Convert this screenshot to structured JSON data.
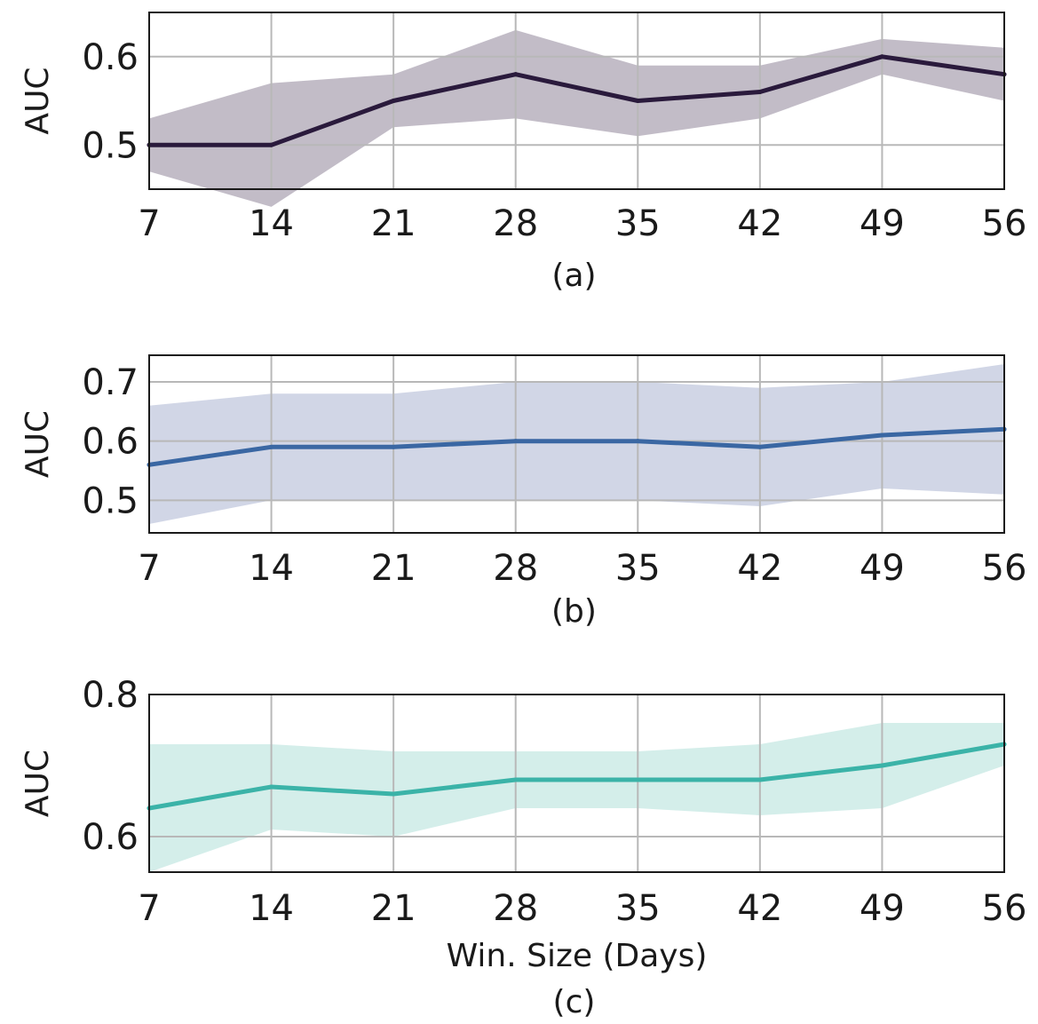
{
  "chart_data": [
    {
      "type": "line",
      "caption": "(a)",
      "xlabel": "",
      "ylabel": "AUC",
      "x": [
        7,
        14,
        21,
        28,
        35,
        42,
        49,
        56
      ],
      "xlim": [
        7,
        56
      ],
      "ylim": [
        0.45,
        0.65
      ],
      "yticks": [
        "0.5",
        "0.6"
      ],
      "grid": true,
      "color": "#2a1a3c",
      "band_color": "#b7b0bd",
      "series": [
        {
          "values": [
            0.5,
            0.5,
            0.55,
            0.58,
            0.55,
            0.56,
            0.6,
            0.58
          ],
          "upper": [
            0.53,
            0.57,
            0.58,
            0.63,
            0.59,
            0.59,
            0.62,
            0.61
          ],
          "lower": [
            0.47,
            0.43,
            0.52,
            0.53,
            0.51,
            0.53,
            0.58,
            0.55
          ]
        }
      ]
    },
    {
      "type": "line",
      "caption": "(b)",
      "xlabel": "",
      "ylabel": "AUC",
      "x": [
        7,
        14,
        21,
        28,
        35,
        42,
        49,
        56
      ],
      "xlim": [
        7,
        56
      ],
      "ylim": [
        0.445,
        0.745
      ],
      "yticks": [
        "0.5",
        "0.6",
        "0.7"
      ],
      "grid": true,
      "color": "#3a67a3",
      "band_color": "#c9cfe2",
      "series": [
        {
          "values": [
            0.56,
            0.59,
            0.59,
            0.6,
            0.6,
            0.59,
            0.61,
            0.62
          ],
          "upper": [
            0.66,
            0.68,
            0.68,
            0.7,
            0.7,
            0.69,
            0.7,
            0.73
          ],
          "lower": [
            0.46,
            0.5,
            0.5,
            0.5,
            0.5,
            0.49,
            0.52,
            0.51
          ]
        }
      ]
    },
    {
      "type": "line",
      "caption": "(c)",
      "xlabel": "Win. Size (Days)",
      "ylabel": "AUC",
      "x": [
        7,
        14,
        21,
        28,
        35,
        42,
        49,
        56
      ],
      "xlim": [
        7,
        56
      ],
      "ylim": [
        0.55,
        0.8
      ],
      "yticks": [
        "0.6",
        "0.8"
      ],
      "grid": true,
      "color": "#3bb3a8",
      "band_color": "#cdebe6",
      "series": [
        {
          "values": [
            0.64,
            0.67,
            0.66,
            0.68,
            0.68,
            0.68,
            0.7,
            0.73
          ],
          "upper": [
            0.73,
            0.73,
            0.72,
            0.72,
            0.72,
            0.73,
            0.76,
            0.76
          ],
          "lower": [
            0.55,
            0.61,
            0.6,
            0.64,
            0.64,
            0.63,
            0.64,
            0.7
          ]
        }
      ]
    }
  ]
}
